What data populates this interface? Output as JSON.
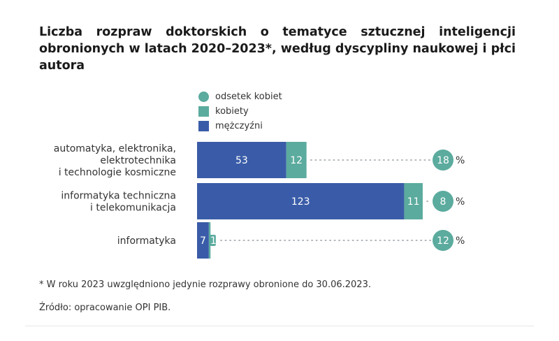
{
  "title": "Liczba rozpraw doktorskich o tematyce sztucznej inteligencji obronionych w latach 2020–2023*, według dyscypliny naukowej i płci autora",
  "legend": {
    "share": "odsetek kobiet",
    "women": "kobiety",
    "men": "mężczyźni"
  },
  "colors": {
    "men": "#3a5ca8",
    "women": "#5bab9e",
    "share": "#5bab9e",
    "text": "#333333"
  },
  "chart_data": {
    "type": "bar",
    "orientation": "horizontal",
    "stacked": true,
    "categories": [
      [
        "automatyka, elektronika,",
        "elektrotechnika",
        "i technologie kosmiczne"
      ],
      [
        "informatyka techniczna",
        "i telekomunikacja"
      ],
      [
        "informatyka"
      ]
    ],
    "series": [
      {
        "name": "mężczyźni",
        "values": [
          53,
          123,
          7
        ]
      },
      {
        "name": "kobiety",
        "values": [
          12,
          11,
          1
        ]
      }
    ],
    "share_women_percent": [
      18,
      8,
      12
    ],
    "percent_symbol": "%",
    "legend_position": "top"
  },
  "footnote": "* W roku 2023 uwzględniono jedynie rozprawy obronione do 30.06.2023.",
  "source": "Źródło: opracowanie OPI PIB."
}
